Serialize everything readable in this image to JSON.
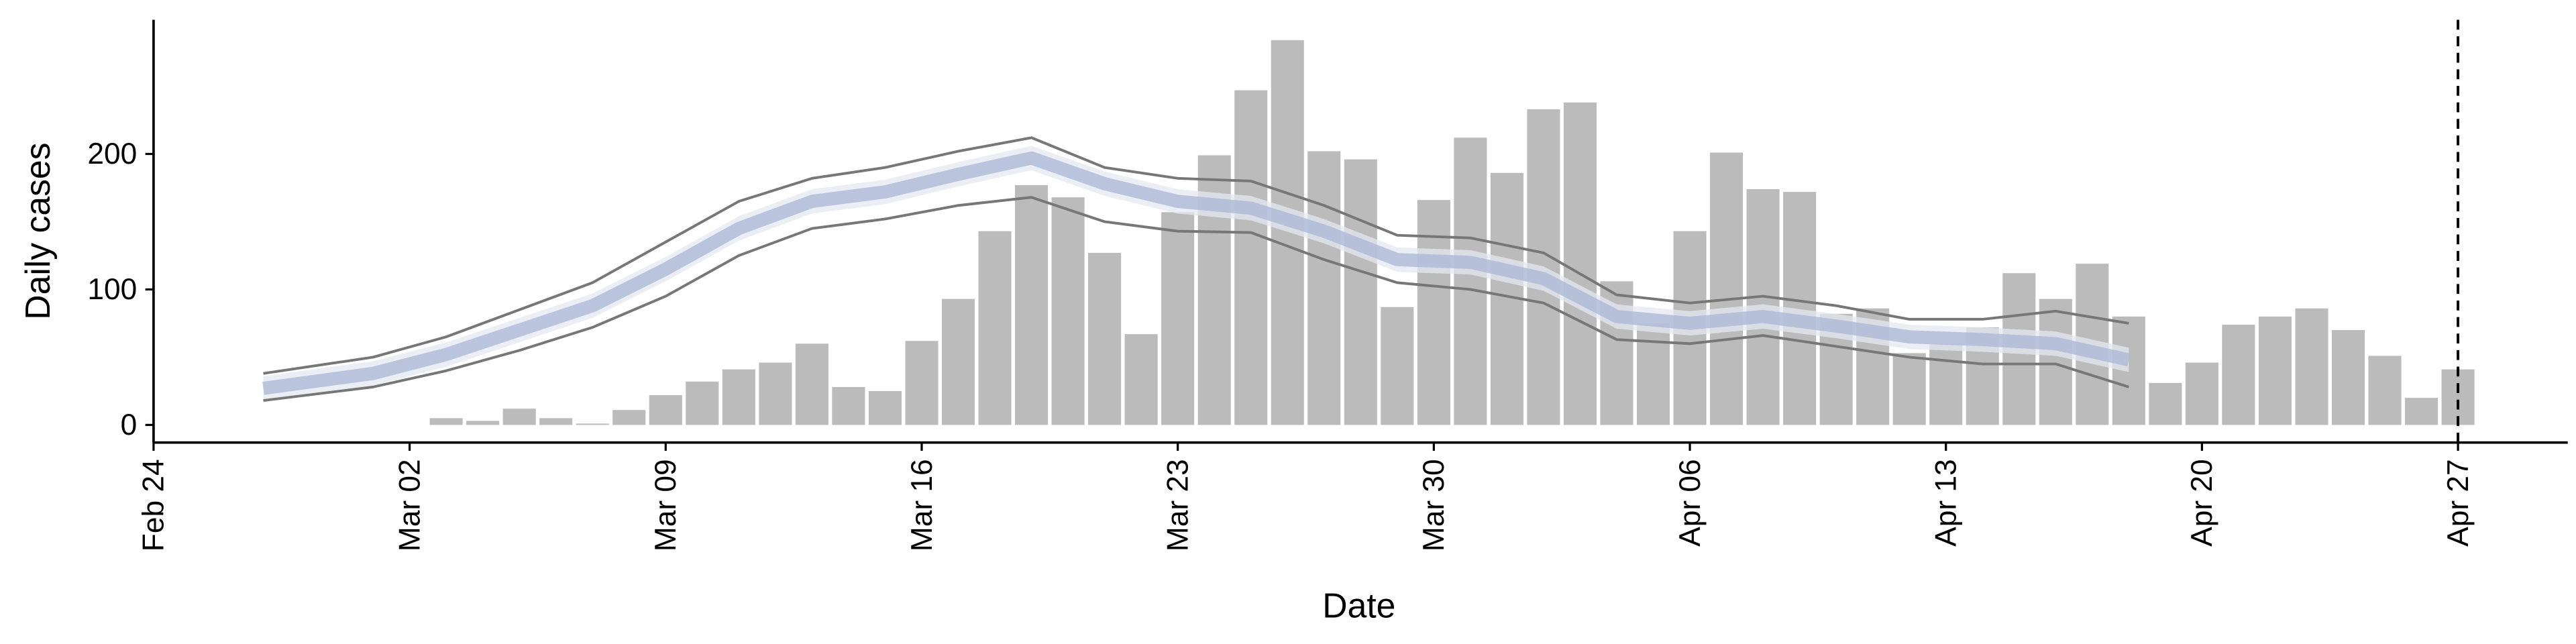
{
  "chart_data": {
    "type": "bar",
    "xlabel": "Date",
    "ylabel": "Daily cases",
    "xlim": [
      "Feb 24",
      "Apr 30"
    ],
    "xticks": [
      "Feb 24",
      "Mar 02",
      "Mar 09",
      "Mar 16",
      "Mar 23",
      "Mar 30",
      "Apr 06",
      "Apr 13",
      "Apr 20",
      "Apr 27"
    ],
    "ylim": [
      -13,
      299
    ],
    "yticks": [
      0,
      100,
      200
    ],
    "color": "#bbbbbb",
    "x": [
      "Mar 03",
      "Mar 04",
      "Mar 05",
      "Mar 06",
      "Mar 07",
      "Mar 08",
      "Mar 09",
      "Mar 10",
      "Mar 11",
      "Mar 12",
      "Mar 13",
      "Mar 14",
      "Mar 15",
      "Mar 16",
      "Mar 17",
      "Mar 18",
      "Mar 19",
      "Mar 20",
      "Mar 21",
      "Mar 22",
      "Mar 23",
      "Mar 24",
      "Mar 25",
      "Mar 26",
      "Mar 27",
      "Mar 28",
      "Mar 29",
      "Mar 30",
      "Mar 31",
      "Apr 01",
      "Apr 02",
      "Apr 03",
      "Apr 04",
      "Apr 05",
      "Apr 06",
      "Apr 07",
      "Apr 08",
      "Apr 09",
      "Apr 10",
      "Apr 11",
      "Apr 12",
      "Apr 13",
      "Apr 14",
      "Apr 15",
      "Apr 16",
      "Apr 17",
      "Apr 18",
      "Apr 19",
      "Apr 20",
      "Apr 21",
      "Apr 22",
      "Apr 23",
      "Apr 24",
      "Apr 25",
      "Apr 26",
      "Apr 27"
    ],
    "values": [
      5,
      3,
      12,
      5,
      1,
      11,
      22,
      32,
      41,
      46,
      60,
      28,
      25,
      62,
      93,
      143,
      177,
      168,
      127,
      67,
      157,
      199,
      247,
      284,
      202,
      196,
      87,
      166,
      212,
      186,
      233,
      238,
      106,
      75,
      143,
      201,
      174,
      172,
      82,
      86,
      53,
      60,
      72,
      112,
      93,
      119,
      80,
      31,
      46,
      74,
      80,
      86,
      70,
      51,
      20,
      41
    ],
    "lines": {
      "x": [
        "Feb 27",
        "Mar 01",
        "Mar 03",
        "Mar 05",
        "Mar 07",
        "Mar 09",
        "Mar 11",
        "Mar 13",
        "Mar 15",
        "Mar 17",
        "Mar 19",
        "Mar 21",
        "Mar 23",
        "Mar 25",
        "Mar 27",
        "Mar 29",
        "Mar 31",
        "Apr 02",
        "Apr 04",
        "Apr 06",
        "Apr 08",
        "Apr 10",
        "Apr 12",
        "Apr 14",
        "Apr 16",
        "Apr 18"
      ],
      "bands": [
        {
          "color": "#e6e8f2",
          "upper": [
            36,
            47,
            61,
            79,
            97,
            124,
            154,
            174,
            181,
            194,
            206,
            187,
            174,
            169,
            152,
            131,
            129,
            117,
            89,
            84,
            89,
            82,
            74,
            72,
            69,
            57
          ],
          "lower": [
            18,
            29,
            43,
            61,
            79,
            106,
            136,
            156,
            163,
            176,
            188,
            169,
            156,
            151,
            134,
            113,
            111,
            99,
            71,
            66,
            71,
            64,
            56,
            54,
            51,
            39
          ]
        }
      ],
      "series": [
        {
          "color": "#777777",
          "width": 1.6,
          "values": [
            38,
            50,
            65,
            85,
            105,
            135,
            165,
            182,
            190,
            202,
            212,
            190,
            182,
            180,
            162,
            140,
            138,
            127,
            96,
            90,
            95,
            88,
            78,
            78,
            84,
            75
          ]
        },
        {
          "color": "#777777",
          "width": 1.6,
          "values": [
            18,
            28,
            40,
            55,
            72,
            95,
            125,
            145,
            152,
            162,
            168,
            150,
            143,
            142,
            122,
            105,
            100,
            90,
            63,
            60,
            66,
            58,
            50,
            45,
            45,
            28
          ]
        },
        {
          "color": "#aeb9d6",
          "width": 8,
          "values": [
            27,
            38,
            52,
            70,
            88,
            115,
            145,
            165,
            172,
            185,
            197,
            178,
            165,
            160,
            143,
            122,
            120,
            108,
            80,
            75,
            80,
            73,
            65,
            63,
            60,
            48
          ]
        }
      ]
    },
    "vline": "Apr 27"
  }
}
